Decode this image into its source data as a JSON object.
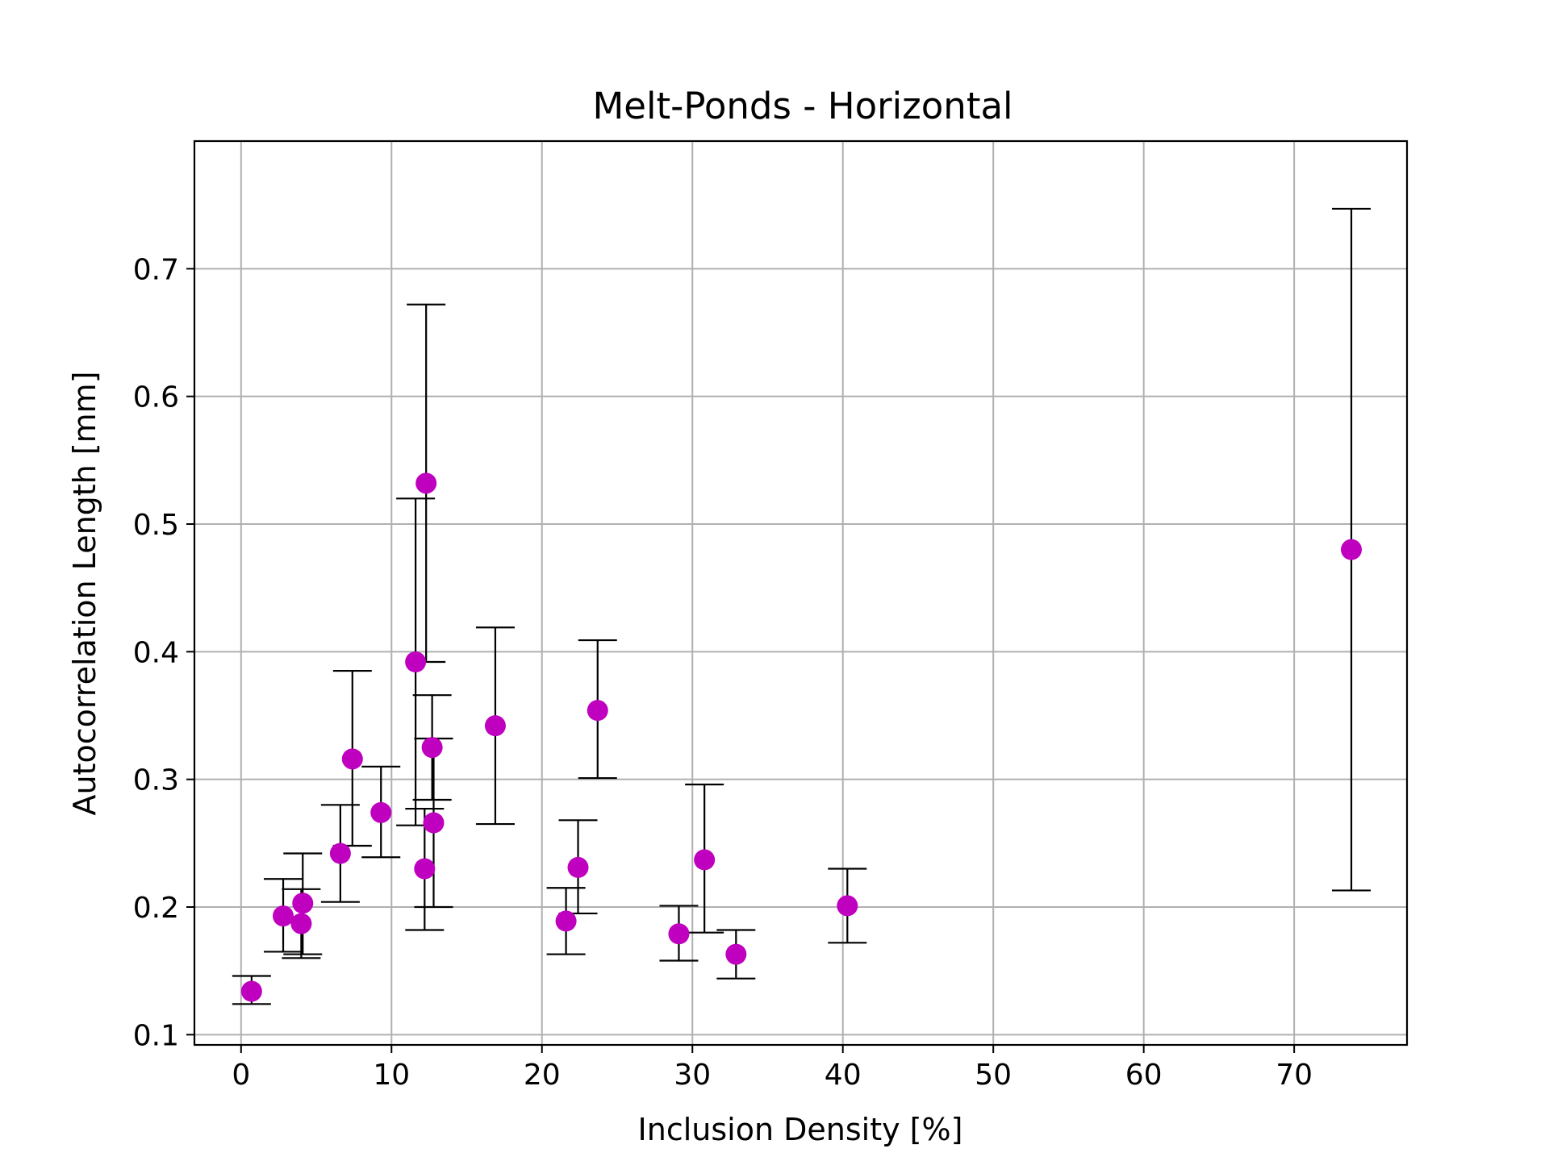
{
  "chart_data": {
    "type": "scatter",
    "title": "Melt-Ponds - Horizontal",
    "xlabel": "Inclusion Density [%]",
    "ylabel": "Autocorrelation Length [mm]",
    "xlim": [
      -3.1,
      77.5
    ],
    "ylim": [
      0.092,
      0.8
    ],
    "xticks": [
      0,
      10,
      20,
      30,
      40,
      50,
      60,
      70
    ],
    "yticks": [
      0.1,
      0.2,
      0.3,
      0.4,
      0.5,
      0.6,
      0.7
    ],
    "xtick_labels": [
      "0",
      "10",
      "20",
      "30",
      "40",
      "50",
      "60",
      "70"
    ],
    "ytick_labels": [
      "0.1",
      "0.2",
      "0.3",
      "0.4",
      "0.5",
      "0.6",
      "0.7"
    ],
    "grid": true,
    "marker_color": "#bf00bf",
    "errorbar_color": "#000000",
    "series": [
      {
        "name": "Melt-Ponds - Horizontal",
        "points": [
          {
            "x": 0.7,
            "y": 0.134,
            "err_low": 0.124,
            "err_high": 0.146
          },
          {
            "x": 2.8,
            "y": 0.193,
            "err_low": 0.165,
            "err_high": 0.222
          },
          {
            "x": 4.1,
            "y": 0.203,
            "err_low": 0.163,
            "err_high": 0.242
          },
          {
            "x": 4.0,
            "y": 0.187,
            "err_low": 0.16,
            "err_high": 0.214
          },
          {
            "x": 6.6,
            "y": 0.242,
            "err_low": 0.204,
            "err_high": 0.28
          },
          {
            "x": 7.4,
            "y": 0.316,
            "err_low": 0.248,
            "err_high": 0.385
          },
          {
            "x": 9.3,
            "y": 0.274,
            "err_low": 0.239,
            "err_high": 0.31
          },
          {
            "x": 11.6,
            "y": 0.392,
            "err_low": 0.264,
            "err_high": 0.52
          },
          {
            "x": 12.3,
            "y": 0.532,
            "err_low": 0.392,
            "err_high": 0.672
          },
          {
            "x": 12.2,
            "y": 0.23,
            "err_low": 0.182,
            "err_high": 0.277
          },
          {
            "x": 12.7,
            "y": 0.325,
            "err_low": 0.284,
            "err_high": 0.366
          },
          {
            "x": 12.8,
            "y": 0.266,
            "err_low": 0.2,
            "err_high": 0.332
          },
          {
            "x": 16.9,
            "y": 0.342,
            "err_low": 0.265,
            "err_high": 0.419
          },
          {
            "x": 21.6,
            "y": 0.189,
            "err_low": 0.163,
            "err_high": 0.215
          },
          {
            "x": 22.4,
            "y": 0.231,
            "err_low": 0.195,
            "err_high": 0.268
          },
          {
            "x": 23.7,
            "y": 0.354,
            "err_low": 0.301,
            "err_high": 0.409
          },
          {
            "x": 29.1,
            "y": 0.179,
            "err_low": 0.158,
            "err_high": 0.201
          },
          {
            "x": 30.8,
            "y": 0.237,
            "err_low": 0.18,
            "err_high": 0.296
          },
          {
            "x": 32.9,
            "y": 0.163,
            "err_low": 0.144,
            "err_high": 0.182
          },
          {
            "x": 40.3,
            "y": 0.201,
            "err_low": 0.172,
            "err_high": 0.23
          },
          {
            "x": 73.8,
            "y": 0.48,
            "err_low": 0.213,
            "err_high": 0.747
          }
        ]
      }
    ]
  }
}
